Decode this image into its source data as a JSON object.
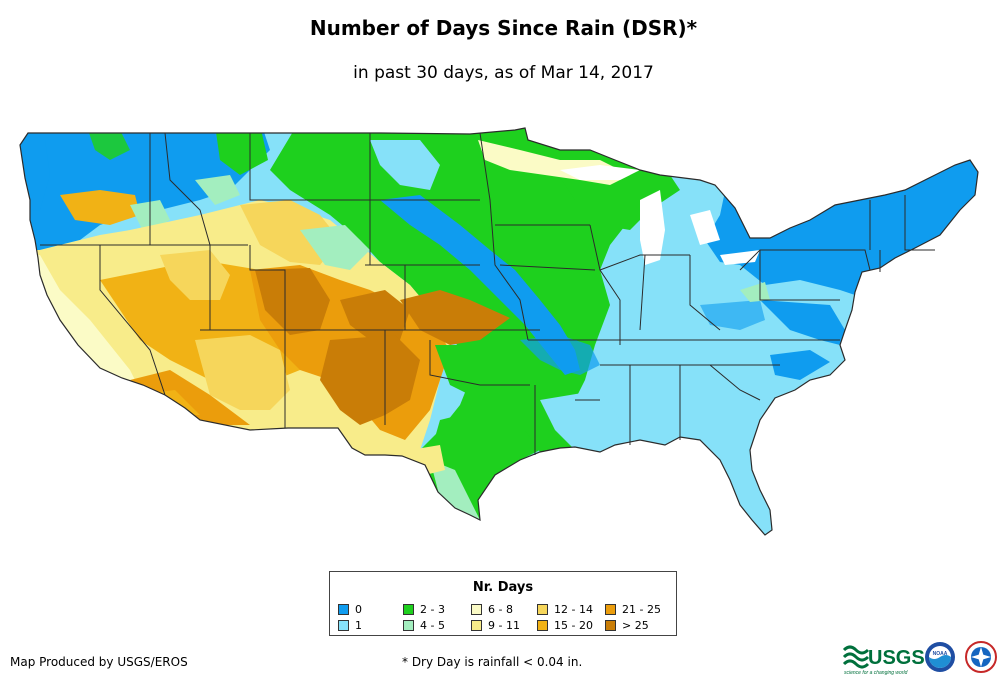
{
  "title": "Number of Days Since Rain (DSR)*",
  "subtitle": "in past 30 days, as of Mar 14, 2017",
  "legend": {
    "title": "Nr. Days",
    "items": [
      {
        "label": "0",
        "color": "#0f9cef"
      },
      {
        "label": "1",
        "color": "#86e1f9"
      },
      {
        "label": "2 - 3",
        "color": "#1ed01e"
      },
      {
        "label": "4 - 5",
        "color": "#a3eebf"
      },
      {
        "label": "6 - 8",
        "color": "#fbfbc6"
      },
      {
        "label": "9 - 11",
        "color": "#f8ec8a"
      },
      {
        "label": "12 - 14",
        "color": "#f6d65b"
      },
      {
        "label": "15 - 20",
        "color": "#f1b215"
      },
      {
        "label": "21 - 25",
        "color": "#eb9d0c"
      },
      {
        "label": "> 25",
        "color": "#c97d07"
      }
    ]
  },
  "credit": "Map Produced by USGS/EROS",
  "footnote": "* Dry Day is rainfall < 0.04 in.",
  "logos": {
    "usgs": "USGS",
    "usgs_tagline": "science for a changing world",
    "noaa": "NOAA"
  }
}
